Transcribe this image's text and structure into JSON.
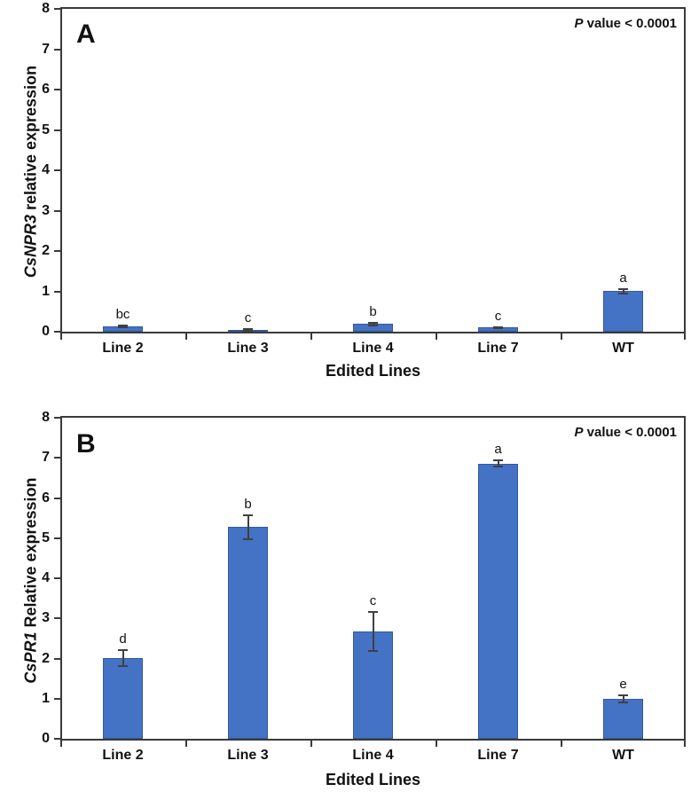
{
  "figure_title": "Relative expression of edited lines (two-panel bar figure)",
  "bar_color": "#4472c4",
  "bar_border_color": "#35599b",
  "axis_color": "#3a3a3a",
  "chart_data": [
    {
      "type": "bar",
      "panel_label": "A",
      "title": "",
      "annotation_p": "P",
      "annotation_rest": " value < 0.0001",
      "ylabel_gene": "CsNPR3",
      "ylabel_rest": " relative expression",
      "xlabel": "Edited Lines",
      "categories": [
        "Line 2",
        "Line 3",
        "Line 4",
        "Line 7",
        "WT"
      ],
      "values": [
        0.13,
        0.05,
        0.19,
        0.1,
        1.0
      ],
      "errors": [
        0.03,
        0.02,
        0.03,
        0.02,
        0.06
      ],
      "sig_letters": [
        "bc",
        "c",
        "b",
        "c",
        "a"
      ],
      "ylim": [
        0,
        8
      ],
      "yticks": [
        0,
        1,
        2,
        3,
        4,
        5,
        6,
        7,
        8
      ],
      "grid": false,
      "legend": "none"
    },
    {
      "type": "bar",
      "panel_label": "B",
      "title": "",
      "annotation_p": "P",
      "annotation_rest": " value < 0.0001",
      "ylabel_gene": "CsPR1",
      "ylabel_rest": " Relative expression",
      "xlabel": "Edited Lines",
      "categories": [
        "Line 2",
        "Line 3",
        "Line 4",
        "Line 7",
        "WT"
      ],
      "values": [
        2.02,
        5.28,
        2.67,
        6.86,
        1.0
      ],
      "errors": [
        0.2,
        0.3,
        0.48,
        0.08,
        0.09
      ],
      "sig_letters": [
        "d",
        "b",
        "c",
        "a",
        "e"
      ],
      "ylim": [
        0,
        8
      ],
      "yticks": [
        0,
        1,
        2,
        3,
        4,
        5,
        6,
        7,
        8
      ],
      "grid": false,
      "legend": "none"
    }
  ]
}
